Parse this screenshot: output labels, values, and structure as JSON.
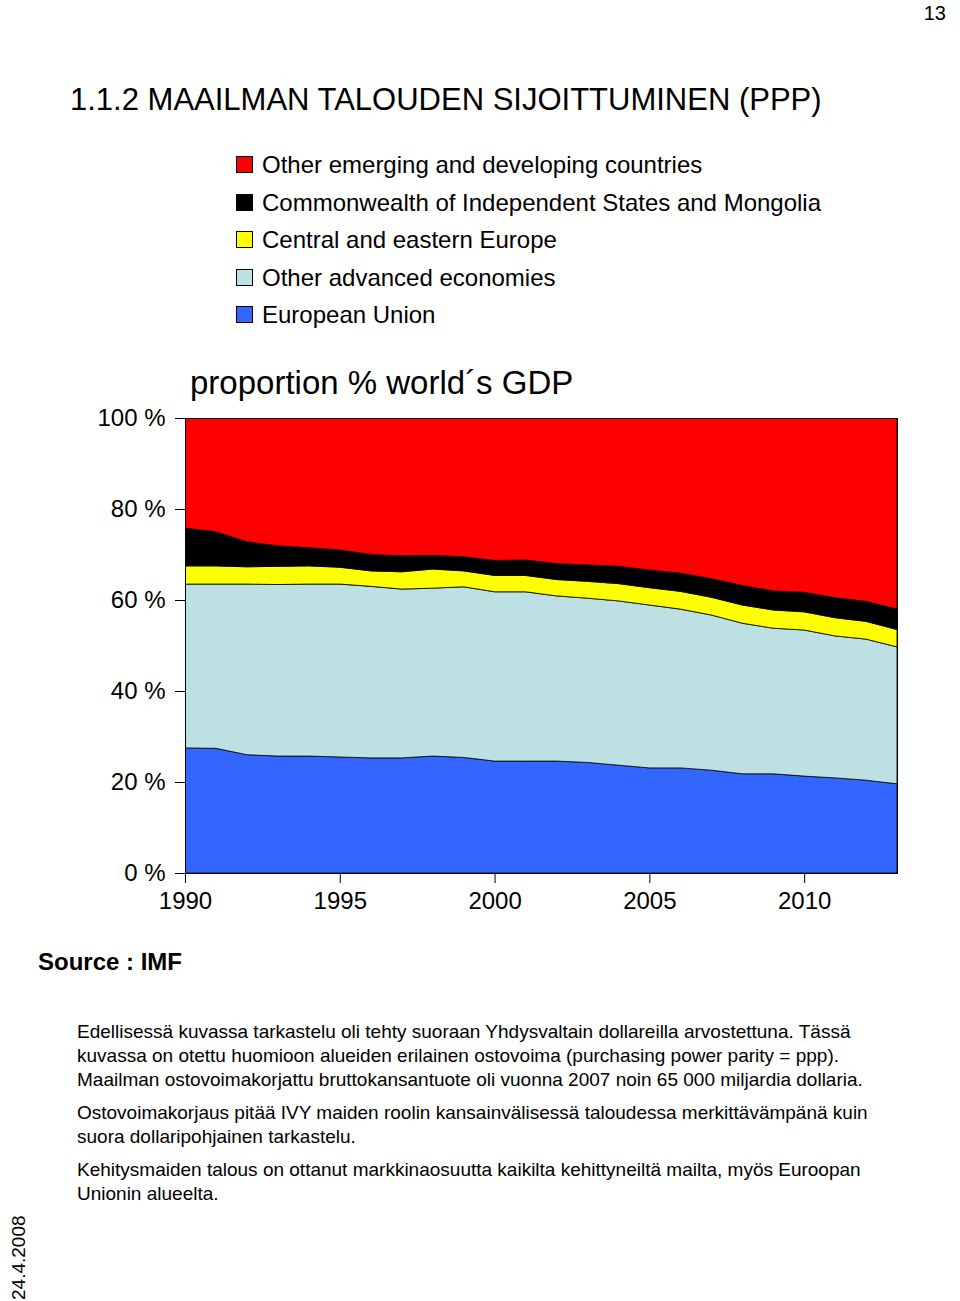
{
  "page_number": "13",
  "heading": "1.1.2 MAAILMAN TALOUDEN SIJOITTUMINEN (PPP)",
  "chart_data": {
    "type": "area",
    "stacked": true,
    "title": "proportion % world´s GDP",
    "legend": "top",
    "x": [
      1990,
      1991,
      1992,
      1993,
      1994,
      1995,
      1996,
      1997,
      1998,
      1999,
      2000,
      2001,
      2002,
      2003,
      2004,
      2005,
      2006,
      2007,
      2008,
      2009,
      2010,
      2011,
      2012,
      2013
    ],
    "xlim": [
      1990,
      2013
    ],
    "xticks": [
      1990,
      1995,
      2000,
      2005,
      2010
    ],
    "ylim": [
      0,
      100
    ],
    "yticks": [
      {
        "value": 0,
        "label": "0 %"
      },
      {
        "value": 20,
        "label": "20 %"
      },
      {
        "value": 40,
        "label": "40 %"
      },
      {
        "value": 60,
        "label": "60 %"
      },
      {
        "value": 80,
        "label": "80 %"
      },
      {
        "value": 100,
        "label": "100 %"
      }
    ],
    "series": [
      {
        "name": "European Union",
        "color": "#3366ff",
        "values": [
          27.5,
          27.4,
          26.0,
          25.7,
          25.7,
          25.5,
          25.3,
          25.3,
          25.7,
          25.4,
          24.6,
          24.6,
          24.6,
          24.3,
          23.7,
          23.1,
          23.1,
          22.6,
          21.8,
          21.8,
          21.3,
          20.9,
          20.4,
          19.6
        ]
      },
      {
        "name": "Other advanced economies",
        "color": "#bde0e3",
        "values": [
          36.0,
          36.1,
          37.5,
          37.7,
          37.8,
          38.0,
          37.7,
          37.1,
          36.9,
          37.5,
          37.2,
          37.2,
          36.3,
          36.1,
          36.1,
          35.8,
          34.9,
          34.1,
          33.1,
          32.0,
          32.1,
          31.2,
          31.0,
          30.1
        ]
      },
      {
        "name": "Central and eastern Europe",
        "color": "#ffff00",
        "values": [
          4.0,
          4.0,
          3.8,
          4.0,
          4.0,
          3.7,
          3.4,
          3.8,
          4.2,
          3.5,
          3.6,
          3.6,
          3.6,
          3.7,
          3.8,
          3.8,
          3.9,
          3.9,
          4.0,
          4.0,
          4.0,
          4.0,
          3.9,
          3.8
        ]
      },
      {
        "name": "Commonwealth of Independent States and Mongolia",
        "color": "#000000",
        "values": [
          8.3,
          7.5,
          5.5,
          4.5,
          4.0,
          3.8,
          3.6,
          3.5,
          3.0,
          3.1,
          3.3,
          3.4,
          3.5,
          3.6,
          3.8,
          3.9,
          4.0,
          4.1,
          4.3,
          4.2,
          4.3,
          4.4,
          4.4,
          4.5
        ]
      },
      {
        "name": "Other emerging and developing countries",
        "color": "#ff0000",
        "values": [
          24.2,
          25.0,
          27.2,
          28.1,
          28.5,
          29.0,
          30.0,
          30.3,
          30.2,
          30.5,
          31.3,
          31.2,
          32.0,
          32.3,
          32.6,
          33.4,
          34.1,
          35.3,
          36.8,
          38.0,
          38.3,
          39.5,
          40.3,
          42.0
        ]
      }
    ]
  },
  "source": "Source : IMF",
  "notes": [
    "Edellisessä kuvassa tarkastelu oli tehty suoraan Yhdysvaltain dollareilla arvostettuna. Tässä kuvassa on otettu huomioon alueiden erilainen ostovoima (purchasing power parity = ppp). Maailman ostovoimakorjattu bruttokansantuote oli vuonna 2007 noin 65 000 miljardia dollaria.",
    "Ostovoimakorjaus pitää IVY maiden roolin kansainvälisessä taloudessa merkittävämpänä kuin suora dollaripohjainen tarkastelu.",
    "Kehitysmaiden talous on ottanut markkinaosuutta kaikilta kehittyneiltä mailta, myös Euroopan Unionin alueelta."
  ],
  "date": "24.4.2008"
}
